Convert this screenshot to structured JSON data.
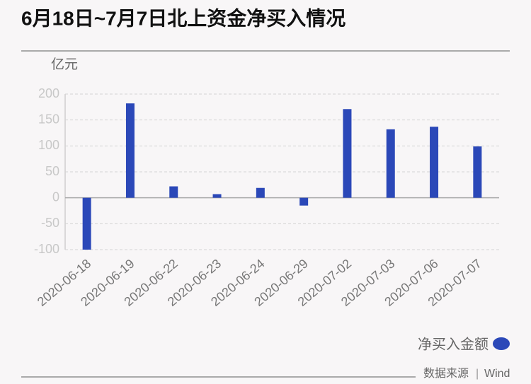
{
  "chart_data": {
    "type": "bar",
    "title": "6月18日~7月7日北上资金净买入情况",
    "y_axis_label": "亿元",
    "categories": [
      "2020-06-18",
      "2020-06-19",
      "2020-06-22",
      "2020-06-23",
      "2020-06-24",
      "2020-06-29",
      "2020-07-02",
      "2020-07-03",
      "2020-07-06",
      "2020-07-07"
    ],
    "series": [
      {
        "name": "净买入金额",
        "color": "#2b48b8",
        "values": [
          -100,
          182,
          22,
          7,
          19,
          -15,
          171,
          132,
          137,
          99
        ]
      }
    ],
    "ylim": [
      -100,
      200
    ],
    "yticks": [
      -100,
      -50,
      0,
      50,
      100,
      150,
      200
    ],
    "grid": true,
    "legend": "bottom-right",
    "source": {
      "label": "数据来源",
      "separator": "|",
      "name": "Wind"
    }
  }
}
